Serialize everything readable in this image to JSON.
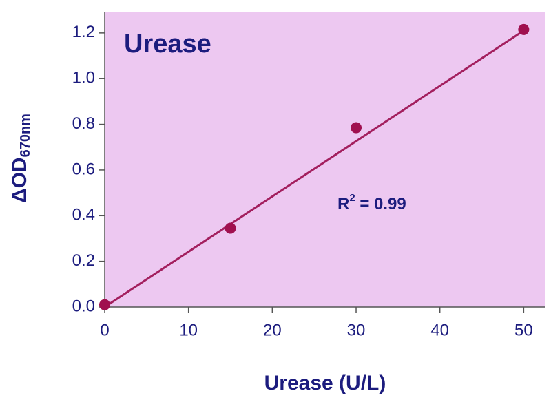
{
  "chart_data": {
    "type": "scatter",
    "title": "Urease",
    "xlabel": "Urease (U/L)",
    "ylabel": "ΔOD",
    "ylabel_sub": "670nm",
    "annotation": {
      "base": "R",
      "sup": "2",
      "rest": " = 0.99"
    },
    "x": [
      0,
      15,
      30,
      50
    ],
    "values": [
      0.01,
      0.345,
      0.785,
      1.215
    ],
    "color": "#a0104f",
    "trendline": {
      "x": [
        0,
        50
      ],
      "values": [
        0,
        1.21
      ],
      "color": "#a31f5e"
    },
    "xlim": [
      0,
      52.6
    ],
    "xticks": [
      0,
      10,
      20,
      30,
      40,
      50
    ],
    "ylim": [
      0,
      1.29
    ],
    "yticks": [
      {
        "value": 0,
        "label": "0.0"
      },
      {
        "value": 0.2,
        "label": "0.2"
      },
      {
        "value": 0.4,
        "label": "0.4"
      },
      {
        "value": 0.6,
        "label": "0.6"
      },
      {
        "value": 0.8,
        "label": "0.8"
      },
      {
        "value": 1.0,
        "label": "1.0"
      },
      {
        "value": 1.2,
        "label": "1.2"
      }
    ],
    "background": "#edc8f1",
    "grid": false
  }
}
